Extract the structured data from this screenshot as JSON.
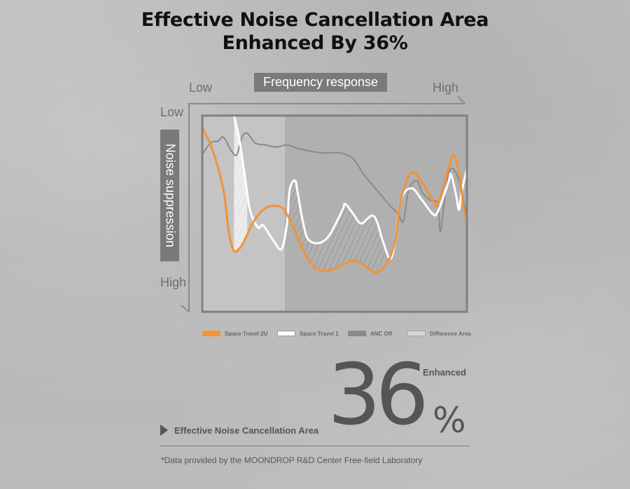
{
  "title": {
    "line1": "Effective Noise Cancellation Area",
    "line2": "Enhanced By 36%"
  },
  "chart_data": {
    "type": "line",
    "title": "Frequency response",
    "xlabel": "Frequency response",
    "ylabel": "Noise suppression",
    "x_axis_ends": {
      "start": "Low",
      "end": "High"
    },
    "y_axis_ends": {
      "start": "Low",
      "end": "High"
    },
    "xlim": [
      0,
      100
    ],
    "ylim": [
      0,
      100
    ],
    "y_note": "0 = Low noise suppression (top), 100 = High noise suppression (bottom); values estimated qualitatively",
    "grid": false,
    "legend_position": "bottom",
    "series": [
      {
        "name": "Space Travel 2U",
        "color": "#f39237",
        "points": [
          [
            0,
            6
          ],
          [
            4,
            18
          ],
          [
            8,
            38
          ],
          [
            10,
            59
          ],
          [
            12,
            69
          ],
          [
            15,
            66
          ],
          [
            19,
            55
          ],
          [
            23,
            48
          ],
          [
            27,
            46
          ],
          [
            31,
            48
          ],
          [
            35,
            59
          ],
          [
            39,
            71
          ],
          [
            43,
            78
          ],
          [
            48,
            79
          ],
          [
            53,
            76
          ],
          [
            58,
            74
          ],
          [
            64,
            79
          ],
          [
            66,
            80
          ],
          [
            70,
            75
          ],
          [
            73,
            63
          ],
          [
            75,
            43
          ],
          [
            79,
            29
          ],
          [
            83,
            34
          ],
          [
            87,
            43
          ],
          [
            89,
            45
          ],
          [
            93,
            27
          ],
          [
            95,
            20
          ],
          [
            97,
            29
          ],
          [
            99,
            49
          ],
          [
            100,
            52
          ]
        ]
      },
      {
        "name": "Space Travel 1",
        "color": "#ffffff",
        "points": [
          [
            12,
            0
          ],
          [
            14,
            12
          ],
          [
            16,
            30
          ],
          [
            18,
            48
          ],
          [
            21,
            57
          ],
          [
            23,
            56
          ],
          [
            27,
            64
          ],
          [
            30,
            68
          ],
          [
            32,
            55
          ],
          [
            33,
            38
          ],
          [
            35,
            33
          ],
          [
            36,
            39
          ],
          [
            38,
            54
          ],
          [
            40,
            63
          ],
          [
            44,
            65
          ],
          [
            48,
            61
          ],
          [
            53,
            48
          ],
          [
            54,
            45
          ],
          [
            57,
            50
          ],
          [
            60,
            55
          ],
          [
            64,
            51
          ],
          [
            66,
            54
          ],
          [
            68,
            63
          ],
          [
            71,
            73
          ],
          [
            73,
            63
          ],
          [
            75,
            43
          ],
          [
            79,
            37
          ],
          [
            83,
            43
          ],
          [
            87,
            50
          ],
          [
            89,
            49
          ],
          [
            93,
            34
          ],
          [
            94,
            30
          ],
          [
            96,
            41
          ],
          [
            97,
            48
          ],
          [
            98,
            39
          ],
          [
            100,
            27
          ]
        ]
      },
      {
        "name": "ANC Off",
        "color": "#8a8a8a",
        "points": [
          [
            0,
            20
          ],
          [
            3,
            14
          ],
          [
            6,
            13
          ],
          [
            8,
            11
          ],
          [
            11,
            18
          ],
          [
            13,
            20
          ],
          [
            15,
            11
          ],
          [
            17,
            9
          ],
          [
            20,
            14
          ],
          [
            24,
            15
          ],
          [
            28,
            16
          ],
          [
            32,
            15
          ],
          [
            37,
            17
          ],
          [
            45,
            19
          ],
          [
            52,
            19
          ],
          [
            57,
            22
          ],
          [
            61,
            30
          ],
          [
            66,
            38
          ],
          [
            71,
            46
          ],
          [
            74,
            50
          ],
          [
            76,
            54
          ],
          [
            78,
            38
          ],
          [
            81,
            33
          ],
          [
            83,
            39
          ],
          [
            86,
            43
          ],
          [
            89,
            45
          ],
          [
            90,
            59
          ],
          [
            92,
            38
          ],
          [
            94,
            27
          ],
          [
            97,
            33
          ],
          [
            100,
            52
          ]
        ]
      }
    ],
    "difference_areas": [
      {
        "name": "Difference Area",
        "between": [
          "Space Travel 2U",
          "Space Travel 1"
        ],
        "x_range": [
          4,
          17
        ],
        "style": "light"
      },
      {
        "name": "Difference Area",
        "between": [
          "Space Travel 2U",
          "Space Travel 1"
        ],
        "x_range": [
          31,
          72
        ],
        "style": "hatched"
      }
    ],
    "legend": [
      {
        "label": "Space Travel 2U",
        "color": "#f39237"
      },
      {
        "label": "Space Travel 1",
        "color": "#ffffff"
      },
      {
        "label": "ANC Off",
        "color": "#8a8a8a"
      },
      {
        "label": "Difference Area",
        "color": "#d8d8d8"
      }
    ]
  },
  "summary": {
    "label": "Effective Noise Cancellation Area",
    "value": "36",
    "unit": "%",
    "qualifier": "Enhanced"
  },
  "footnote": "*Data provided by the MOONDROP R&D Center Free-field Laboratory"
}
